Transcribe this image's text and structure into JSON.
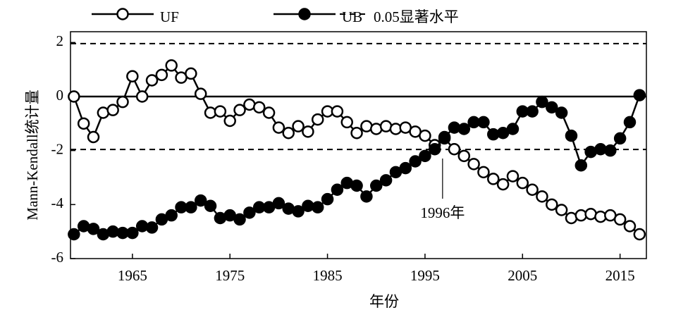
{
  "chart_data": {
    "type": "line",
    "x": [
      1959,
      1960,
      1961,
      1962,
      1963,
      1964,
      1965,
      1966,
      1967,
      1968,
      1969,
      1970,
      1971,
      1972,
      1973,
      1974,
      1975,
      1976,
      1977,
      1978,
      1979,
      1980,
      1981,
      1982,
      1983,
      1984,
      1985,
      1986,
      1987,
      1988,
      1989,
      1990,
      1991,
      1992,
      1993,
      1994,
      1995,
      1996,
      1997,
      1998,
      1999,
      2000,
      2001,
      2002,
      2003,
      2004,
      2005,
      2006,
      2007,
      2008,
      2009,
      2010,
      2011,
      2012,
      2013,
      2014,
      2015,
      2016,
      2017
    ],
    "series": [
      {
        "name": "UF",
        "color": "#000000",
        "marker": "open",
        "values": [
          0.0,
          -1.0,
          -1.5,
          -0.6,
          -0.5,
          -0.2,
          0.75,
          0.0,
          0.6,
          0.8,
          1.15,
          0.7,
          0.85,
          0.1,
          -0.6,
          -0.55,
          -0.9,
          -0.5,
          -0.3,
          -0.4,
          -0.6,
          -1.15,
          -1.35,
          -1.1,
          -1.3,
          -0.85,
          -0.55,
          -0.55,
          -0.95,
          -1.35,
          -1.1,
          -1.2,
          -1.1,
          -1.2,
          -1.15,
          -1.3,
          -1.45,
          -1.8,
          -1.55,
          -1.95,
          -2.2,
          -2.5,
          -2.8,
          -3.05,
          -3.25,
          -2.95,
          -3.2,
          -3.45,
          -3.7,
          -4.0,
          -4.2,
          -4.5,
          -4.4,
          -4.35,
          -4.45,
          -4.4,
          -4.55,
          -4.8,
          -5.1
        ]
      },
      {
        "name": "UB",
        "color": "#000000",
        "marker": "filled",
        "values": [
          -5.1,
          -4.8,
          -4.9,
          -5.1,
          -5.0,
          -5.05,
          -5.05,
          -4.8,
          -4.85,
          -4.55,
          -4.4,
          -4.1,
          -4.1,
          -3.85,
          -4.05,
          -4.5,
          -4.4,
          -4.55,
          -4.3,
          -4.1,
          -4.1,
          -3.95,
          -4.15,
          -4.25,
          -4.05,
          -4.1,
          -3.8,
          -3.45,
          -3.2,
          -3.3,
          -3.7,
          -3.3,
          -3.1,
          -2.8,
          -2.65,
          -2.4,
          -2.2,
          -1.95,
          -1.5,
          -1.15,
          -1.2,
          -0.95,
          -0.95,
          -1.4,
          -1.35,
          -1.2,
          -0.55,
          -0.55,
          -0.2,
          -0.4,
          -0.6,
          -1.45,
          -2.55,
          -2.05,
          -1.95,
          -2.0,
          -1.55,
          -0.95,
          0.05
        ]
      }
    ],
    "reference_lines": [
      {
        "name": "0.05显著水平",
        "values": [
          1.96,
          -1.96
        ]
      }
    ],
    "baseline": 0,
    "annotation": {
      "text": "1996年",
      "x": 1996.8
    },
    "xlabel": "年份",
    "ylabel": "Mann-Kendall统计量",
    "xlim": [
      1958.65,
      2017.7
    ],
    "xticks": [
      1965,
      1975,
      1985,
      1995,
      2005,
      2015
    ],
    "ylim": [
      -6,
      2.4
    ],
    "yticks": [
      2,
      0,
      -2,
      -4,
      -6
    ],
    "legend": "top"
  }
}
